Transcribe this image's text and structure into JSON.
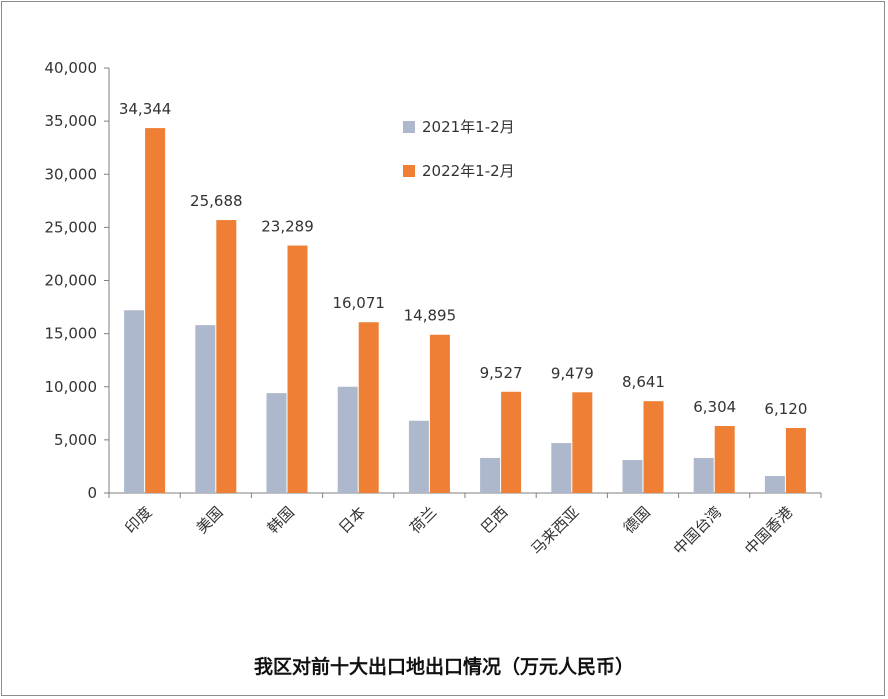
{
  "caption": "我区对前十大出口地出口情况（万元人民币）",
  "colors": {
    "s2021": "#aeb8cc",
    "s2022": "#ee7f35",
    "axis": "#7f7f7f",
    "text": "#333333"
  },
  "chart_data": {
    "type": "bar",
    "title": "",
    "xlabel": "",
    "ylabel": "",
    "ylim": [
      0,
      40000
    ],
    "yticks": [
      "0",
      "5,000",
      "10,000",
      "15,000",
      "20,000",
      "25,000",
      "30,000",
      "35,000",
      "40,000"
    ],
    "legend_position": "top-right",
    "grid": false,
    "categories": [
      "印度",
      "美国",
      "韩国",
      "日本",
      "荷兰",
      "巴西",
      "马来西亚",
      "德国",
      "中国台湾",
      "中国香港"
    ],
    "series": [
      {
        "name": "2021年1-2月",
        "values": [
          17200,
          15800,
          9400,
          10000,
          6800,
          3300,
          4700,
          3100,
          3300,
          1600
        ]
      },
      {
        "name": "2022年1-2月",
        "values": [
          34344,
          25688,
          23289,
          16071,
          14895,
          9527,
          9479,
          8641,
          6304,
          6120
        ],
        "labels": [
          "34,344",
          "25,688",
          "23,289",
          "16,071",
          "14,895",
          "9,527",
          "9,479",
          "8,641",
          "6,304",
          "6,120"
        ]
      }
    ]
  }
}
